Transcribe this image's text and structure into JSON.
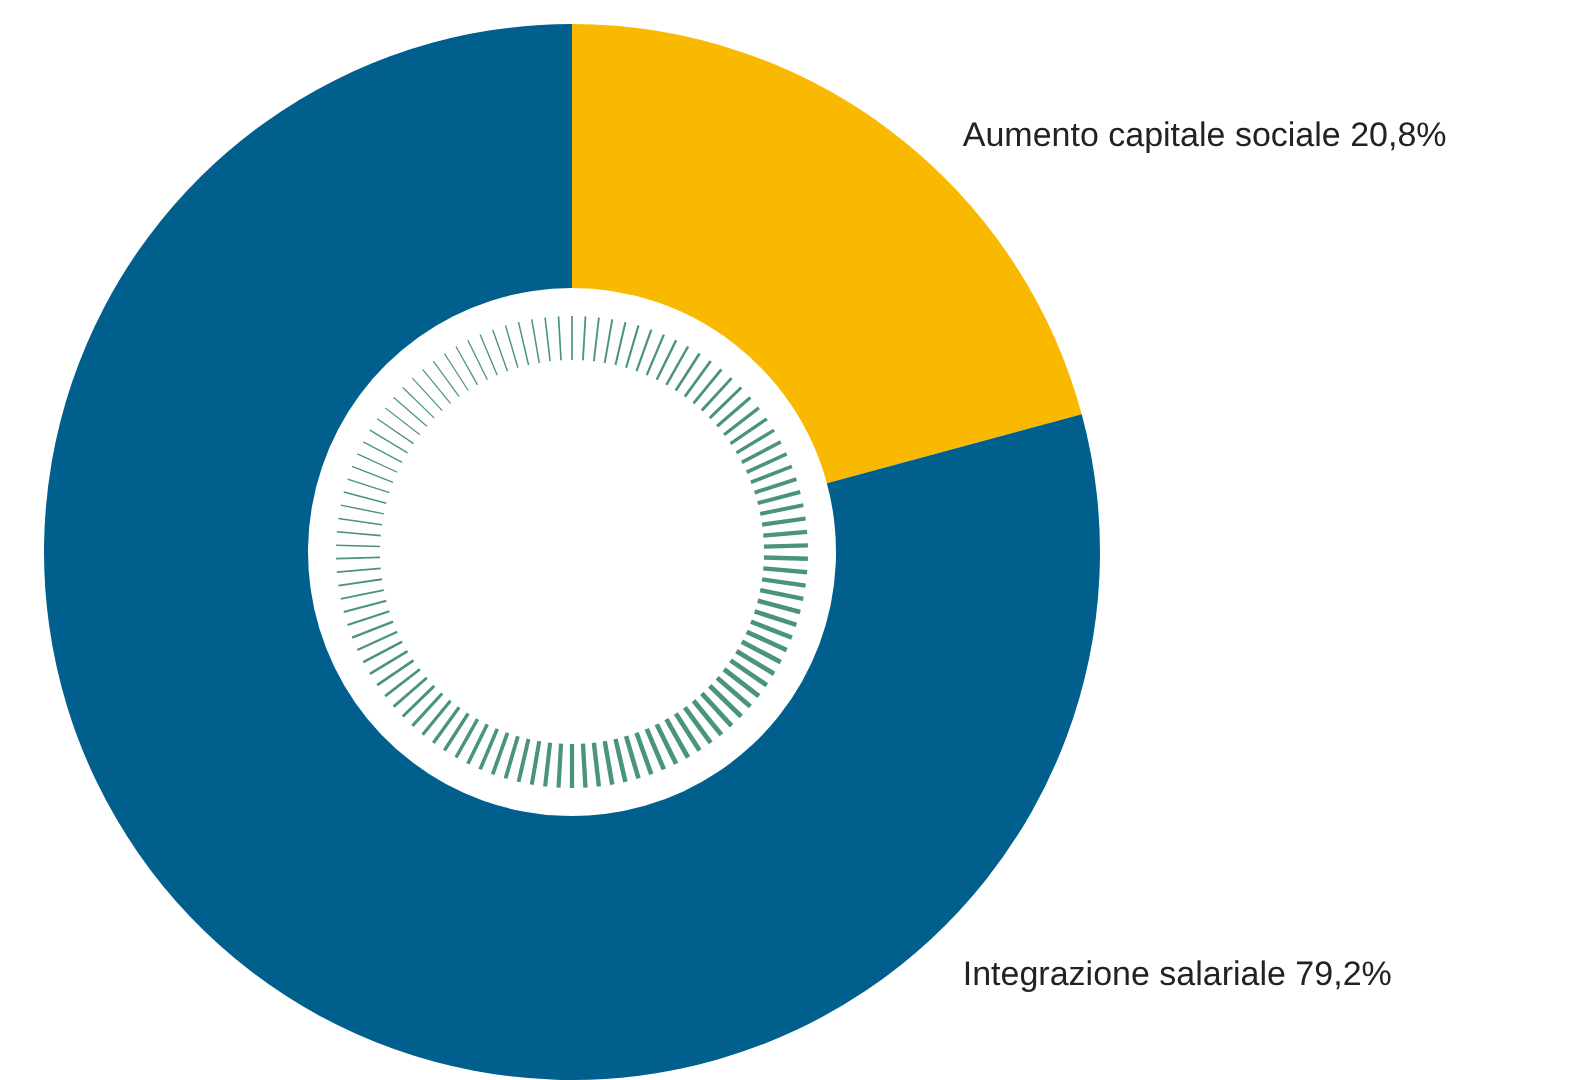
{
  "chart_data": {
    "type": "donut",
    "categories": [
      "Aumento capitale sociale",
      "Integrazione salariale"
    ],
    "values": [
      20.8,
      79.2
    ],
    "colors": [
      "#f8b900",
      "#005f8c"
    ],
    "value_labels": [
      "20,8%",
      "79,2%"
    ],
    "legend": false
  }
}
